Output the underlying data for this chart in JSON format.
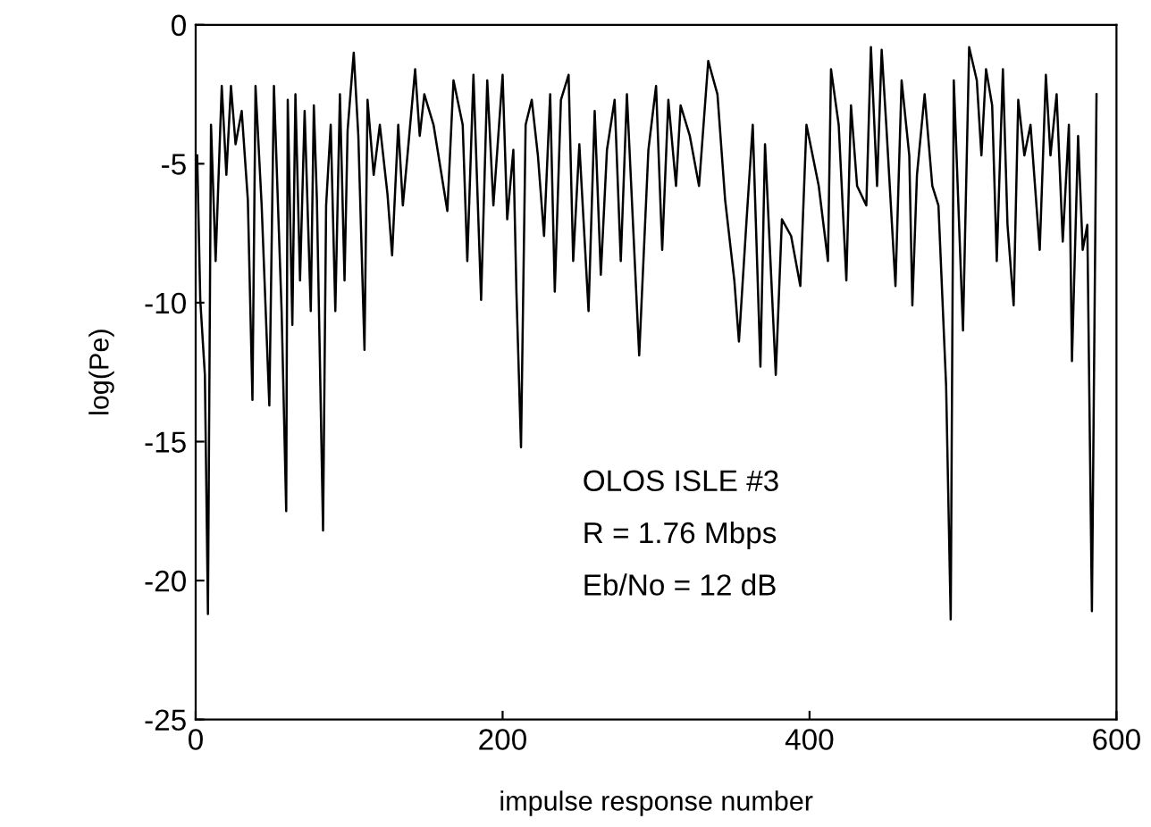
{
  "chart_data": {
    "type": "line",
    "xlabel": "impulse response number",
    "ylabel": "log(Pe)",
    "xlim": [
      0,
      600
    ],
    "ylim": [
      -25,
      0
    ],
    "xticks": [
      0,
      200,
      400,
      600
    ],
    "yticks": [
      0,
      -5,
      -10,
      -15,
      -20,
      -25
    ],
    "grid": false,
    "marker": "none",
    "line_style": "solid",
    "annotations": [
      "OLOS ISLE #3",
      "R = 1.76 Mbps",
      "Eb/No = 12 dB"
    ],
    "series": [
      {
        "color": "#000000",
        "x": [
          1,
          3,
          6,
          8,
          10,
          13,
          17,
          20,
          23,
          26,
          30,
          34,
          37,
          39,
          43,
          48,
          51,
          56,
          59,
          60,
          63,
          65,
          68,
          71,
          75,
          77,
          79,
          83,
          85,
          88,
          91,
          94,
          97,
          99,
          103,
          106,
          110,
          112,
          116,
          120,
          125,
          128,
          132,
          135,
          138,
          143,
          146,
          149,
          155,
          164,
          168,
          174,
          177,
          181,
          186,
          190,
          194,
          200,
          203,
          207,
          209,
          212,
          215,
          219,
          223,
          227,
          231,
          234,
          238,
          243,
          246,
          250,
          256,
          260,
          264,
          268,
          273,
          277,
          281,
          289,
          295,
          300,
          304,
          308,
          313,
          316,
          322,
          328,
          334,
          340,
          345,
          351,
          354,
          359,
          363,
          368,
          371,
          378,
          382,
          388,
          394,
          398,
          406,
          412,
          414,
          419,
          424,
          427,
          431,
          437,
          440,
          444,
          447,
          450,
          456,
          460,
          465,
          467,
          470,
          475,
          480,
          484,
          489,
          492,
          494,
          500,
          504,
          509,
          512,
          515,
          519,
          522,
          526,
          529,
          533,
          536,
          540,
          544,
          550,
          554,
          557,
          561,
          565,
          569,
          571,
          575,
          578,
          581,
          584,
          587
        ],
        "values": [
          -4.7,
          -9.9,
          -12.6,
          -21.2,
          -3.6,
          -8.5,
          -2.2,
          -5.4,
          -2.2,
          -4.3,
          -3.1,
          -6.3,
          -13.5,
          -2.2,
          -6.5,
          -13.7,
          -2.2,
          -10.3,
          -17.5,
          -2.7,
          -10.8,
          -2.5,
          -9.2,
          -3.1,
          -10.3,
          -2.9,
          -6.3,
          -18.2,
          -6.5,
          -3.6,
          -10.3,
          -2.5,
          -9.2,
          -3.8,
          -1.0,
          -4.0,
          -11.7,
          -2.7,
          -5.4,
          -3.6,
          -6.1,
          -8.3,
          -3.6,
          -6.5,
          -4.7,
          -1.6,
          -4.0,
          -2.5,
          -3.6,
          -6.7,
          -2.0,
          -3.6,
          -8.5,
          -1.8,
          -9.9,
          -2.0,
          -6.5,
          -1.8,
          -7.0,
          -4.5,
          -9.6,
          -15.2,
          -3.6,
          -2.7,
          -4.7,
          -7.6,
          -2.5,
          -9.6,
          -2.7,
          -1.8,
          -8.5,
          -4.3,
          -10.3,
          -3.1,
          -9.0,
          -4.5,
          -2.7,
          -8.5,
          -2.5,
          -11.9,
          -4.5,
          -2.2,
          -8.1,
          -2.7,
          -5.8,
          -2.9,
          -4.0,
          -5.8,
          -1.3,
          -2.5,
          -6.3,
          -9.2,
          -11.4,
          -7.0,
          -3.6,
          -12.3,
          -4.3,
          -12.6,
          -7.0,
          -7.6,
          -9.4,
          -3.6,
          -5.8,
          -8.5,
          -1.6,
          -3.6,
          -9.2,
          -2.9,
          -5.8,
          -6.5,
          -0.8,
          -5.8,
          -0.9,
          -3.6,
          -9.4,
          -2.0,
          -4.7,
          -10.1,
          -5.4,
          -2.5,
          -5.8,
          -6.5,
          -13.0,
          -21.4,
          -2.0,
          -11.0,
          -0.8,
          -2.0,
          -4.7,
          -1.6,
          -2.9,
          -8.5,
          -1.6,
          -7.2,
          -10.1,
          -2.7,
          -4.7,
          -3.6,
          -8.1,
          -1.8,
          -4.7,
          -2.5,
          -7.8,
          -3.6,
          -12.1,
          -4.0,
          -8.1,
          -7.2,
          -21.1,
          -2.5
        ]
      }
    ]
  }
}
